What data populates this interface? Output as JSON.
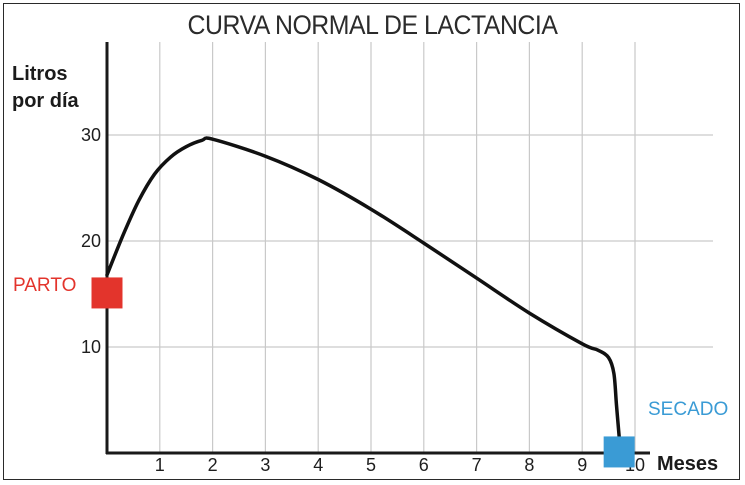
{
  "chart_data": {
    "type": "line",
    "title": "CURVA NORMAL DE LACTANCIA",
    "ylabel": "Litros por día",
    "xlabel": "Meses",
    "xlim": [
      0,
      10.5
    ],
    "ylim": [
      0,
      35
    ],
    "x_ticks": [
      1,
      2,
      3,
      4,
      5,
      6,
      7,
      8,
      9,
      10
    ],
    "y_ticks": [
      10,
      20,
      30
    ],
    "grid": true,
    "series": [
      {
        "color": "#111111",
        "points": [
          [
            0.0,
            16.8
          ],
          [
            0.3,
            20.5
          ],
          [
            0.6,
            23.8
          ],
          [
            0.9,
            26.3
          ],
          [
            1.2,
            27.9
          ],
          [
            1.5,
            28.9
          ],
          [
            1.8,
            29.5
          ],
          [
            2.0,
            29.6
          ],
          [
            3.0,
            28.0
          ],
          [
            4.0,
            25.8
          ],
          [
            5.0,
            23.0
          ],
          [
            6.0,
            19.8
          ],
          [
            7.0,
            16.5
          ],
          [
            8.0,
            13.2
          ],
          [
            9.0,
            10.3
          ],
          [
            9.3,
            9.7
          ],
          [
            9.5,
            9.0
          ],
          [
            9.6,
            7.5
          ],
          [
            9.65,
            4.5
          ],
          [
            9.7,
            1.5
          ]
        ]
      }
    ],
    "markers": [
      {
        "label": "PARTO",
        "x": 0.0,
        "y": 15.1,
        "color": "#e3342c"
      },
      {
        "label": "SECADO",
        "x": 9.7,
        "y": 0.1,
        "color": "#3a9bd5"
      }
    ]
  }
}
